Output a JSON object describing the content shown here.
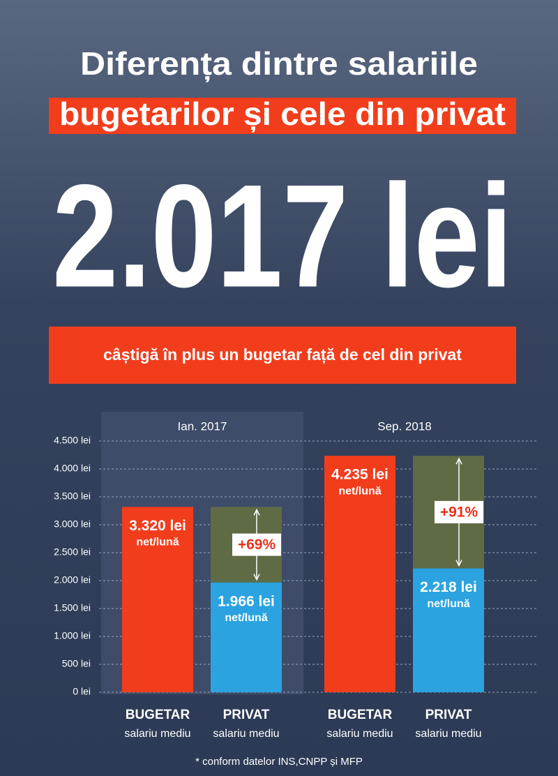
{
  "chart_data": {
    "type": "bar",
    "title_lines": [
      "Diferența dintre salariile",
      "bugetarilor și cele din privat"
    ],
    "headline": "2.017 lei",
    "subtitle": "câștigă în plus un bugetar față de cel din privat",
    "groups": [
      "Ian. 2017",
      "Sep. 2018"
    ],
    "categories": [
      "BUGETAR",
      "PRIVAT",
      "BUGETAR",
      "PRIVAT"
    ],
    "category_sublabels": [
      "salariu mediu",
      "salariu mediu",
      "salariu mediu",
      "salariu mediu"
    ],
    "values": [
      3320,
      1966,
      4235,
      2218
    ],
    "value_labels": [
      "3.320 lei",
      "1.966 lei",
      "4.235 lei",
      "2.218 lei"
    ],
    "value_sublabels": [
      "net/lună",
      "net/lună",
      "net/lună",
      "net/lună"
    ],
    "colors": [
      "#f23d1c",
      "#2aa3e0",
      "#f23d1c",
      "#2aa3e0"
    ],
    "gap_color": "#5f6b45",
    "increase": {
      "values": [
        69,
        91
      ],
      "value_labels": [
        "+69%",
        "+91%"
      ]
    },
    "ylim": [
      0,
      4500
    ],
    "yticks": [
      {
        "value": 0,
        "label": "0 lei"
      },
      {
        "value": 500,
        "label": "500 lei"
      },
      {
        "value": 1000,
        "label": "1.000 lei"
      },
      {
        "value": 1500,
        "label": "1.500 lei"
      },
      {
        "value": 2000,
        "label": "2.000 lei"
      },
      {
        "value": 2500,
        "label": "2.500 lei"
      },
      {
        "value": 3000,
        "label": "3.000 lei"
      },
      {
        "value": 3500,
        "label": "3.500 lei"
      },
      {
        "value": 4000,
        "label": "4.000 lei"
      },
      {
        "value": 4500,
        "label": "4.500 lei"
      }
    ],
    "grid": true,
    "footnote": "* conform datelor INS,CNPP și MFP"
  }
}
